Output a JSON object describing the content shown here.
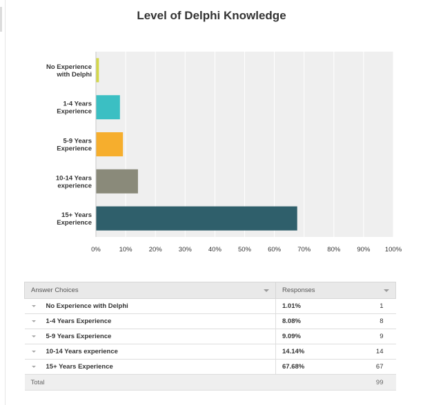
{
  "title": "Level of Delphi Knowledge",
  "chart_data": {
    "type": "bar",
    "orientation": "horizontal",
    "title": "Level of Delphi Knowledge",
    "categories": [
      "No Experience with Delphi",
      "1-4 Years Experience",
      "5-9 Years Experience",
      "10-14 Years experience",
      "15+ Years Experience"
    ],
    "values": [
      1.01,
      8.08,
      9.09,
      14.14,
      67.68
    ],
    "colors": [
      "#d4d84a",
      "#3bbfc3",
      "#f6ae2d",
      "#8a8a7a",
      "#2f5f6b"
    ],
    "xlim": [
      0,
      100
    ],
    "xticks": [
      "0%",
      "10%",
      "20%",
      "30%",
      "40%",
      "50%",
      "60%",
      "70%",
      "80%",
      "90%",
      "100%"
    ],
    "grid": true,
    "xlabel": "",
    "ylabel": ""
  },
  "table": {
    "headers": {
      "choices": "Answer Choices",
      "responses": "Responses"
    },
    "rows": [
      {
        "label": "No Experience with Delphi",
        "percent": "1.01%",
        "count": "1"
      },
      {
        "label": "1-4 Years Experience",
        "percent": "8.08%",
        "count": "8"
      },
      {
        "label": "5-9 Years Experience",
        "percent": "9.09%",
        "count": "9"
      },
      {
        "label": "10-14 Years experience",
        "percent": "14.14%",
        "count": "14"
      },
      {
        "label": "15+ Years Experience",
        "percent": "67.68%",
        "count": "67"
      }
    ],
    "total_label": "Total",
    "total_count": "99"
  }
}
